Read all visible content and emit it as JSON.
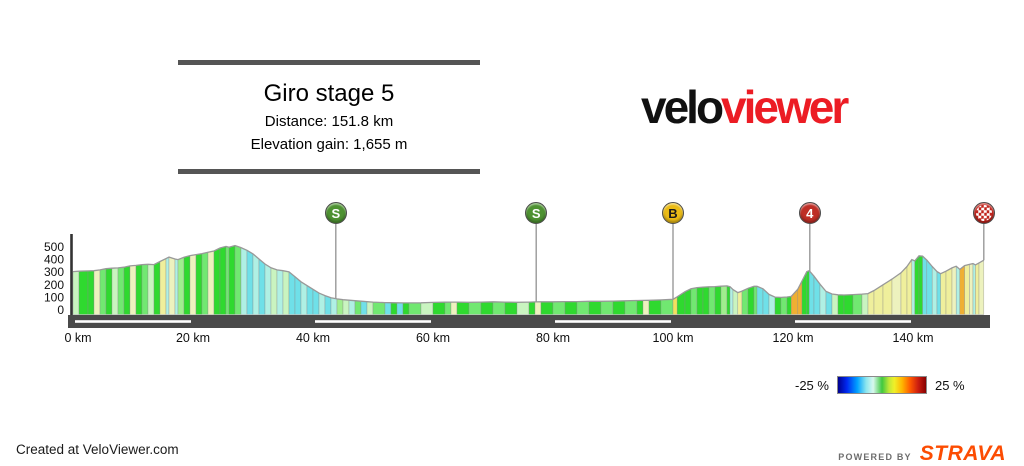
{
  "title_block": {
    "title": "Giro stage 5",
    "distance_label": "Distance: 151.8 km",
    "elevation_label": "Elevation gain: 1,655 m"
  },
  "logo": {
    "velo": "velo",
    "viewer": "viewer",
    "velo_color": "#111111",
    "viewer_color": "#EC1C24"
  },
  "legend": {
    "min_label": "-25 %",
    "max_label": "25 %",
    "stops": [
      "#00008E 0%",
      "#0028F0 10%",
      "#00A2FF 22%",
      "#8CE6EE 32%",
      "#D8F8EE 40%",
      "#3FC83F 50%",
      "#C0E838 58%",
      "#F0F028 64%",
      "#FFB400 73%",
      "#FF5A00 82%",
      "#CC1E10 91%",
      "#860000 100%"
    ]
  },
  "footer": {
    "created_at": "Created at VeloViewer.com",
    "powered_by": "POWERED BY",
    "strava": "STRAVA",
    "strava_color": "#FC4C02"
  },
  "chart_data": {
    "type": "area",
    "title": "Giro stage 5",
    "distance_km": 151.8,
    "elevation_gain_m": 1655,
    "x_unit": "km",
    "y_unit": "m",
    "xlim": [
      0,
      151.8
    ],
    "ylim": [
      0,
      600
    ],
    "grid": false,
    "legend_position": "bottom-right",
    "gradient_scale": {
      "min_pct": -25,
      "max_pct": 25
    },
    "y_ticks": [
      0,
      100,
      200,
      300,
      400,
      500
    ],
    "x_ticks": [
      {
        "km": 0,
        "label": "0 km"
      },
      {
        "km": 20,
        "label": "20 km"
      },
      {
        "km": 40,
        "label": "40 km"
      },
      {
        "km": 60,
        "label": "60 km"
      },
      {
        "km": 80,
        "label": "80 km"
      },
      {
        "km": 100,
        "label": "100 km"
      },
      {
        "km": 120,
        "label": "120 km"
      },
      {
        "km": 140,
        "label": "140 km"
      }
    ],
    "scale_stripes_km": [
      [
        0,
        20
      ],
      [
        40,
        60
      ],
      [
        80,
        100
      ],
      [
        120,
        140
      ]
    ],
    "palette": [
      "#2FD92F",
      "#71E871",
      "#A0EE8E",
      "#C9F4C0",
      "#EDF2BE",
      "#EFEF9C",
      "#F2E15E",
      "#EFAF33",
      "#6FE0E8",
      "#AFF0E4"
    ],
    "markers": [
      {
        "km": 43.8,
        "type": "sprint",
        "label": "S"
      },
      {
        "km": 77.2,
        "type": "sprint",
        "label": "S"
      },
      {
        "km": 100,
        "type": "bonus",
        "label": "B"
      },
      {
        "km": 122.8,
        "type": "cat4",
        "label": "4"
      },
      {
        "km": 151.8,
        "type": "finish",
        "label": ""
      }
    ],
    "points": [
      [
        0,
        305,
        3
      ],
      [
        1,
        308,
        0
      ],
      [
        2.5,
        310,
        0
      ],
      [
        3.5,
        312,
        4
      ],
      [
        4.5,
        318,
        1
      ],
      [
        5.5,
        328,
        0
      ],
      [
        6.5,
        332,
        3
      ],
      [
        7.5,
        334,
        1
      ],
      [
        8.5,
        340,
        0
      ],
      [
        9.5,
        350,
        4
      ],
      [
        10.5,
        354,
        0
      ],
      [
        11.5,
        360,
        1
      ],
      [
        12.5,
        363,
        3
      ],
      [
        13.5,
        360,
        0
      ],
      [
        14.5,
        385,
        5
      ],
      [
        15.5,
        408,
        9
      ],
      [
        16,
        420,
        4
      ],
      [
        17,
        405,
        9
      ],
      [
        17.5,
        400,
        2
      ],
      [
        18.5,
        418,
        0
      ],
      [
        19.5,
        432,
        4
      ],
      [
        20.5,
        440,
        0
      ],
      [
        21.5,
        448,
        1
      ],
      [
        22.5,
        458,
        4
      ],
      [
        23.5,
        468,
        0
      ],
      [
        24.5,
        492,
        0
      ],
      [
        25.5,
        505,
        1
      ],
      [
        26,
        498,
        0
      ],
      [
        27,
        512,
        1
      ],
      [
        28,
        495,
        9
      ],
      [
        29,
        474,
        8
      ],
      [
        30,
        445,
        9
      ],
      [
        31,
        405,
        8
      ],
      [
        32,
        365,
        9
      ],
      [
        33,
        335,
        3
      ],
      [
        34,
        318,
        9
      ],
      [
        35,
        312,
        3
      ],
      [
        36,
        302,
        8
      ],
      [
        37,
        264,
        8
      ],
      [
        38,
        224,
        9
      ],
      [
        39,
        194,
        8
      ],
      [
        40,
        164,
        8
      ],
      [
        41,
        134,
        9
      ],
      [
        42,
        114,
        8
      ],
      [
        43,
        98,
        9
      ],
      [
        44,
        88,
        2
      ],
      [
        45,
        82,
        3
      ],
      [
        46,
        78,
        9
      ],
      [
        47,
        74,
        1
      ],
      [
        48,
        70,
        8
      ],
      [
        49,
        66,
        3
      ],
      [
        50,
        63,
        1
      ],
      [
        52,
        59,
        8
      ],
      [
        53,
        58,
        0
      ],
      [
        54,
        57,
        8
      ],
      [
        55,
        56,
        0
      ],
      [
        56,
        56,
        1
      ],
      [
        58,
        57,
        3
      ],
      [
        60,
        60,
        0
      ],
      [
        62,
        62,
        1
      ],
      [
        63,
        63,
        4
      ],
      [
        64,
        63,
        0
      ],
      [
        66,
        61,
        1
      ],
      [
        68,
        63,
        0
      ],
      [
        70,
        65,
        1
      ],
      [
        72,
        63,
        0
      ],
      [
        74,
        61,
        3
      ],
      [
        76,
        63,
        0
      ],
      [
        77,
        64,
        4
      ],
      [
        78,
        65,
        0
      ],
      [
        80,
        65,
        1
      ],
      [
        82,
        67,
        0
      ],
      [
        84,
        67,
        1
      ],
      [
        86,
        69,
        0
      ],
      [
        88,
        69,
        1
      ],
      [
        90,
        71,
        0
      ],
      [
        92,
        73,
        1
      ],
      [
        94,
        75,
        0
      ],
      [
        95,
        76,
        4
      ],
      [
        96,
        77,
        0
      ],
      [
        98,
        80,
        1
      ],
      [
        100,
        85,
        6
      ],
      [
        100.7,
        105,
        0
      ],
      [
        102,
        145,
        0
      ],
      [
        103,
        168,
        1
      ],
      [
        104,
        178,
        0
      ],
      [
        105,
        182,
        0
      ],
      [
        106,
        184,
        1
      ],
      [
        107,
        186,
        0
      ],
      [
        108,
        189,
        2
      ],
      [
        109,
        191,
        0
      ],
      [
        109.5,
        185,
        9
      ],
      [
        110,
        162,
        3
      ],
      [
        110.8,
        138,
        5
      ],
      [
        111.5,
        150,
        1
      ],
      [
        112.5,
        172,
        0
      ],
      [
        113.5,
        188,
        1
      ],
      [
        114,
        188,
        8
      ],
      [
        115,
        168,
        8
      ],
      [
        116,
        124,
        9
      ],
      [
        117,
        102,
        0
      ],
      [
        118,
        100,
        1
      ],
      [
        119,
        103,
        0
      ],
      [
        119.7,
        108,
        7
      ],
      [
        120.8,
        165,
        7
      ],
      [
        121.5,
        230,
        0
      ],
      [
        122.3,
        305,
        0
      ],
      [
        122.7,
        312,
        8
      ],
      [
        123.5,
        268,
        8
      ],
      [
        124.5,
        205,
        9
      ],
      [
        125.5,
        148,
        8
      ],
      [
        126.5,
        127,
        3
      ],
      [
        127.5,
        121,
        0
      ],
      [
        128.5,
        119,
        0
      ],
      [
        130,
        122,
        1
      ],
      [
        131.5,
        126,
        3
      ],
      [
        132.5,
        130,
        5
      ],
      [
        133.5,
        155,
        5
      ],
      [
        135,
        200,
        5
      ],
      [
        136.5,
        245,
        4
      ],
      [
        138,
        295,
        5
      ],
      [
        139,
        345,
        5
      ],
      [
        139.8,
        400,
        9
      ],
      [
        140.3,
        390,
        0
      ],
      [
        141,
        430,
        0
      ],
      [
        141.6,
        428,
        8
      ],
      [
        142.3,
        396,
        8
      ],
      [
        143.2,
        345,
        9
      ],
      [
        144,
        305,
        8
      ],
      [
        144.6,
        288,
        5
      ],
      [
        145.5,
        308,
        5
      ],
      [
        146.5,
        334,
        4
      ],
      [
        147.2,
        348,
        9
      ],
      [
        147.8,
        322,
        7
      ],
      [
        148.6,
        352,
        5
      ],
      [
        149.4,
        362,
        4
      ],
      [
        150,
        368,
        9
      ],
      [
        150.4,
        358,
        5
      ],
      [
        151,
        374,
        4
      ],
      [
        151.8,
        395,
        0
      ]
    ]
  }
}
